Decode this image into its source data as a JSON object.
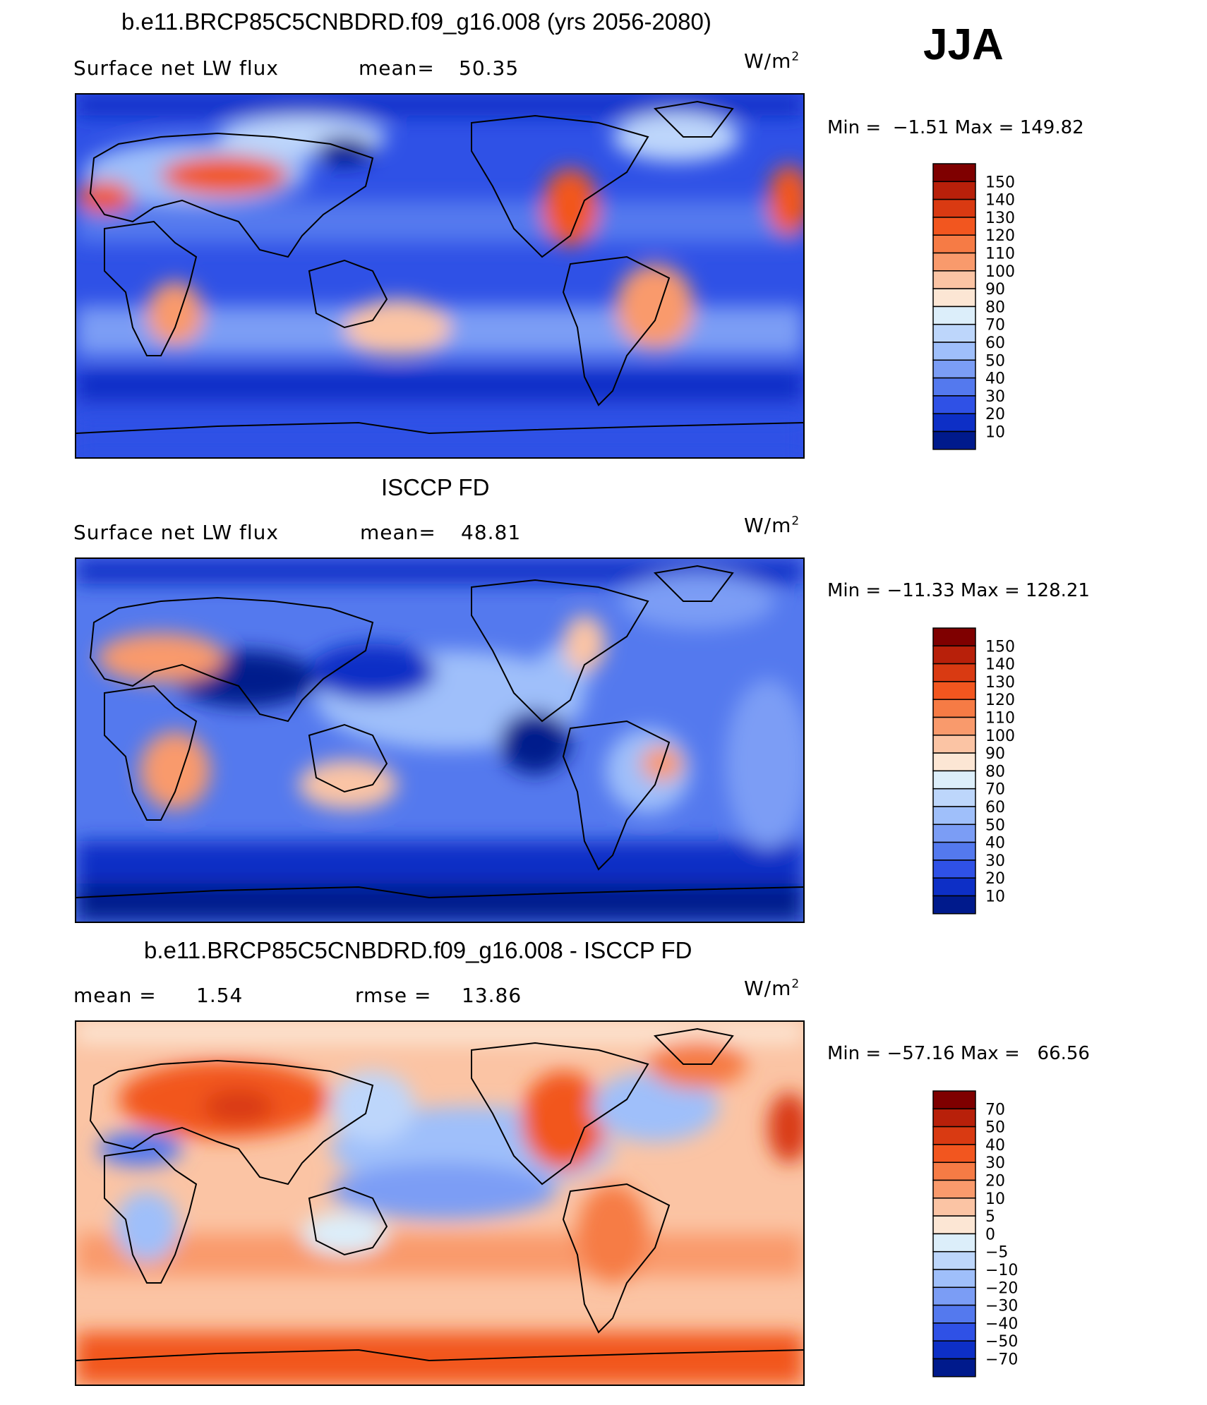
{
  "season": "JJA",
  "panels": [
    {
      "title": "b.e11.BRCP85C5CNBDRD.f09_g16.008 (yrs 2056-2080)",
      "left_label": "Surface net LW flux",
      "mid_label": "mean=",
      "mid_value": "50.35",
      "units": "W/m",
      "units_sup": "2",
      "minmax": "Min =  −1.51 Max = 149.82",
      "colorbar": {
        "labels": [
          "150",
          "140",
          "130",
          "120",
          "110",
          "100",
          "90",
          "80",
          "70",
          "60",
          "50",
          "40",
          "30",
          "20",
          "10"
        ],
        "colors": [
          "#7f0000",
          "#b8200a",
          "#d93a12",
          "#f2561f",
          "#f67b45",
          "#f99a6c",
          "#fbc4a4",
          "#fce6d4",
          "#dceefa",
          "#bdd6fb",
          "#9fbffa",
          "#7b9df5",
          "#5479ee",
          "#2f51e6",
          "#0d2fc6",
          "#001a8c"
        ]
      }
    },
    {
      "title": "ISCCP FD",
      "left_label": "Surface net LW flux",
      "mid_label": "mean=",
      "mid_value": "48.81",
      "units": "W/m",
      "units_sup": "2",
      "minmax": "Min = −11.33 Max = 128.21",
      "colorbar": {
        "labels": [
          "150",
          "140",
          "130",
          "120",
          "110",
          "100",
          "90",
          "80",
          "70",
          "60",
          "50",
          "40",
          "30",
          "20",
          "10"
        ],
        "colors": [
          "#7f0000",
          "#b8200a",
          "#d93a12",
          "#f2561f",
          "#f67b45",
          "#f99a6c",
          "#fbc4a4",
          "#fce6d4",
          "#dceefa",
          "#bdd6fb",
          "#9fbffa",
          "#7b9df5",
          "#5479ee",
          "#2f51e6",
          "#0d2fc6",
          "#001a8c"
        ]
      }
    },
    {
      "title": "b.e11.BRCP85C5CNBDRD.f09_g16.008 - ISCCP FD",
      "left_label": "mean =",
      "left_value": "1.54",
      "mid_label": "rmse =",
      "mid_value": "13.86",
      "units": "W/m",
      "units_sup": "2",
      "minmax": "Min = −57.16 Max =   66.56",
      "colorbar": {
        "labels": [
          "70",
          "50",
          "40",
          "30",
          "20",
          "10",
          "5",
          "0",
          "−5",
          "−10",
          "−20",
          "−30",
          "−40",
          "−50",
          "−70"
        ],
        "colors": [
          "#7f0000",
          "#b8200a",
          "#d93a12",
          "#f2561f",
          "#f67b45",
          "#f99a6c",
          "#fbc4a4",
          "#fce6d4",
          "#dceefa",
          "#bdd6fb",
          "#9fbffa",
          "#7b9df5",
          "#5479ee",
          "#2f51e6",
          "#0d2fc6",
          "#001a8c"
        ]
      }
    }
  ],
  "chart_data": [
    {
      "type": "heatmap",
      "title": "b.e11.BRCP85C5CNBDRD.f09_g16.008 (yrs 2056-2080)",
      "variable": "Surface net LW flux",
      "season": "JJA",
      "units": "W/m2",
      "mean": 50.35,
      "min": -1.51,
      "max": 149.82,
      "contour_levels": [
        10,
        20,
        30,
        40,
        50,
        60,
        70,
        80,
        90,
        100,
        110,
        120,
        130,
        140,
        150
      ],
      "colors": {
        "low": "#001a8c",
        "mid": "#fce6d4",
        "high": "#7f0000"
      }
    },
    {
      "type": "heatmap",
      "title": "ISCCP FD",
      "variable": "Surface net LW flux",
      "season": "JJA",
      "units": "W/m2",
      "mean": 48.81,
      "min": -11.33,
      "max": 128.21,
      "contour_levels": [
        10,
        20,
        30,
        40,
        50,
        60,
        70,
        80,
        90,
        100,
        110,
        120,
        130,
        140,
        150
      ],
      "colors": {
        "low": "#001a8c",
        "mid": "#fce6d4",
        "high": "#7f0000"
      }
    },
    {
      "type": "heatmap",
      "title": "b.e11.BRCP85C5CNBDRD.f09_g16.008 - ISCCP FD",
      "season": "JJA",
      "units": "W/m2",
      "mean": 1.54,
      "rmse": 13.86,
      "min": -57.16,
      "max": 66.56,
      "contour_levels": [
        -70,
        -50,
        -40,
        -30,
        -20,
        -10,
        -5,
        0,
        5,
        10,
        20,
        30,
        40,
        50,
        70
      ],
      "colors": {
        "low": "#001a8c",
        "mid": "#fce6d4",
        "high": "#7f0000"
      }
    }
  ]
}
